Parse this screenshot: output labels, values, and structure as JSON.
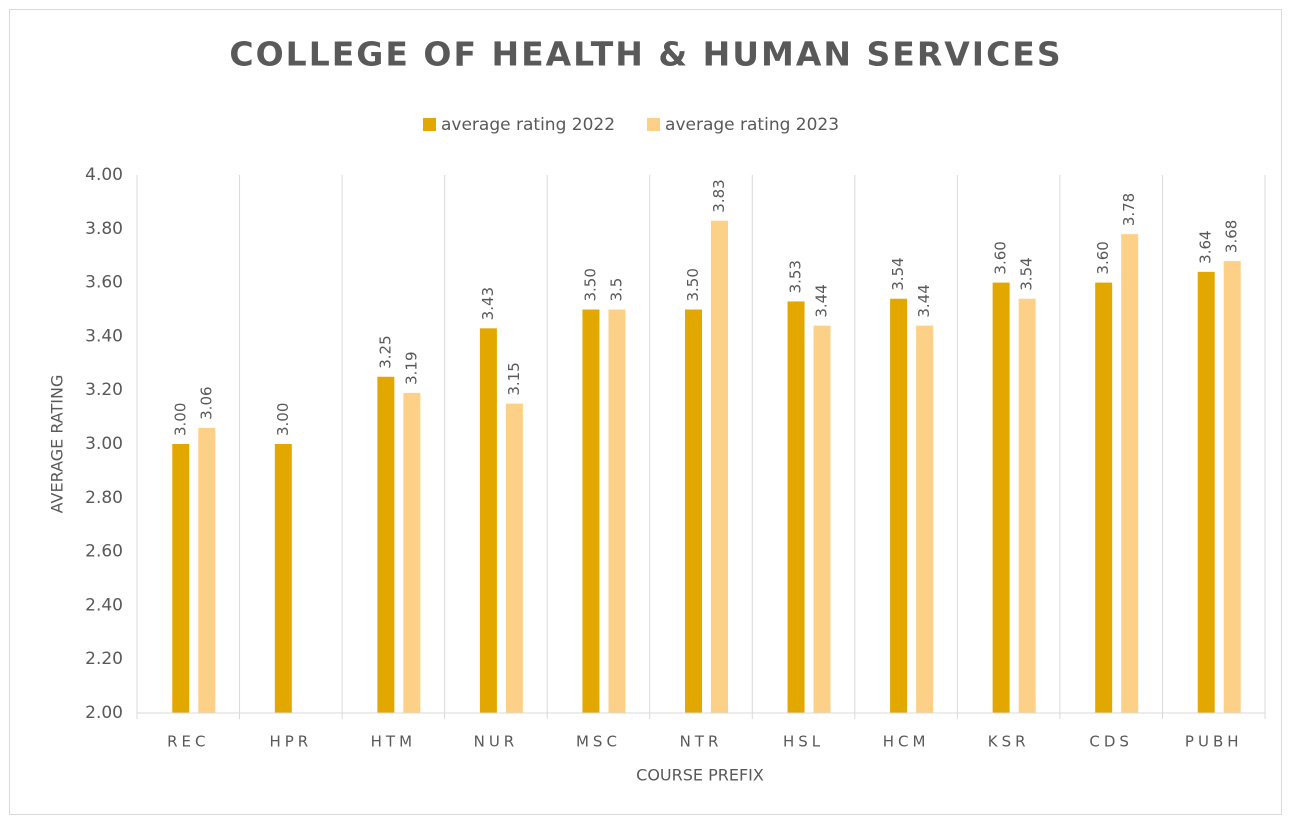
{
  "chart_data": {
    "type": "bar",
    "title": "COLLEGE OF HEALTH & HUMAN SERVICES",
    "x_label": "COURSE PREFIX",
    "y_label": "AVERAGE RATING",
    "categories": [
      "REC",
      "HPR",
      "HTM",
      "NUR",
      "MSC",
      "NTR",
      "HSL",
      "HCM",
      "KSR",
      "CDS",
      "PUBH"
    ],
    "series": [
      {
        "name": "average rating 2022",
        "color": "#e3a800",
        "values": [
          3.0,
          3.0,
          3.25,
          3.43,
          3.5,
          3.5,
          3.53,
          3.54,
          3.6,
          3.6,
          3.64
        ],
        "value_labels": [
          "3.00",
          "3.00",
          "3.25",
          "3.43",
          "3.50",
          "3.50",
          "3.53",
          "3.54",
          "3.60",
          "3.60",
          "3.64"
        ]
      },
      {
        "name": "average rating 2023",
        "color": "#fdd088",
        "values": [
          3.06,
          null,
          3.19,
          3.15,
          3.5,
          3.83,
          3.44,
          3.44,
          3.54,
          3.78,
          3.68
        ]
      }
    ],
    "ylim": [
      2,
      4
    ],
    "yticks": [
      {
        "value": 2,
        "label": "2.00"
      },
      {
        "value": 2.2,
        "label": "2.20"
      },
      {
        "value": 2.4,
        "label": "2.40"
      },
      {
        "value": 2.6,
        "label": "2.60"
      },
      {
        "value": 2.8,
        "label": "2.80"
      },
      {
        "value": 3,
        "label": "3.00"
      },
      {
        "value": 3.2,
        "label": "3.20"
      },
      {
        "value": 3.4,
        "label": "3.40"
      },
      {
        "value": 3.6,
        "label": "3.60"
      },
      {
        "value": 3.8,
        "label": "3.80"
      },
      {
        "value": 4,
        "label": "4.00"
      }
    ],
    "legend": "top"
  }
}
